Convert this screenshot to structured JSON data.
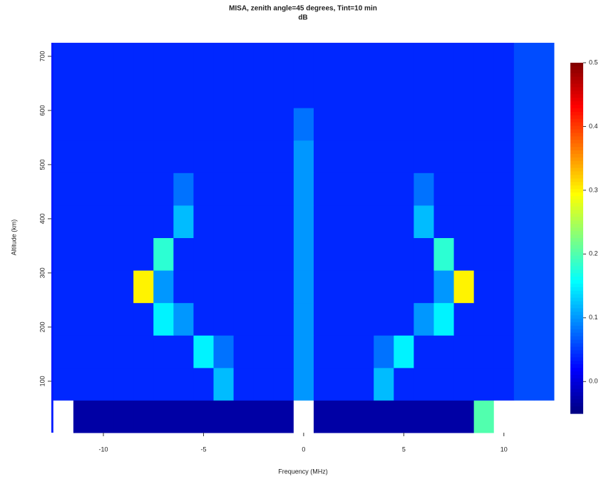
{
  "chart_data": {
    "type": "heatmap",
    "title": "MISA, zenith angle=45 degrees, Tint=10 min",
    "subtitle": "dB",
    "xlabel": "Frequency (MHz)",
    "ylabel": "Altitude (km)",
    "xlim": [
      -12.6,
      12.5
    ],
    "ylim": [
      5,
      725
    ],
    "xticks": [
      -10,
      -5,
      0,
      5,
      10
    ],
    "yticks": [
      100,
      200,
      300,
      400,
      500,
      600,
      700
    ],
    "zlim": [
      -0.05,
      0.5
    ],
    "colorbar_ticks": [
      {
        "value": 0,
        "label": "0.0"
      },
      0.1,
      0.2,
      0.3,
      0.4,
      0.5
    ],
    "colormap": "jet",
    "over_color": "#ffffff",
    "x": [
      -12,
      -11,
      -10,
      -9,
      -8,
      -7,
      -6,
      -5,
      -4,
      -3,
      -2,
      -1,
      0,
      1,
      2,
      3,
      4,
      5,
      6,
      7,
      8,
      9,
      10,
      11,
      12
    ],
    "y": [
      35,
      95,
      155,
      215,
      275,
      335,
      395,
      455,
      515,
      575,
      635,
      695
    ],
    "z": [
      [
        0.6,
        -0.03,
        -0.03,
        -0.03,
        -0.03,
        -0.03,
        -0.03,
        -0.03,
        -0.03,
        -0.03,
        -0.03,
        -0.03,
        0.6,
        -0.03,
        -0.03,
        -0.03,
        -0.03,
        -0.03,
        -0.03,
        -0.03,
        -0.03,
        0.2,
        0.6,
        0.6,
        0.6
      ],
      [
        0.04,
        0.04,
        0.04,
        0.04,
        0.04,
        0.04,
        0.04,
        0.04,
        0.12,
        0.04,
        0.04,
        0.04,
        0.1,
        0.04,
        0.04,
        0.04,
        0.12,
        0.04,
        0.04,
        0.04,
        0.04,
        0.04,
        0.04,
        0.06,
        0.06
      ],
      [
        0.04,
        0.04,
        0.04,
        0.04,
        0.04,
        0.04,
        0.04,
        0.15,
        0.08,
        0.04,
        0.04,
        0.04,
        0.1,
        0.04,
        0.04,
        0.04,
        0.08,
        0.15,
        0.04,
        0.04,
        0.04,
        0.04,
        0.04,
        0.06,
        0.06
      ],
      [
        0.04,
        0.04,
        0.04,
        0.04,
        0.04,
        0.15,
        0.1,
        0.04,
        0.04,
        0.04,
        0.04,
        0.04,
        0.1,
        0.04,
        0.04,
        0.04,
        0.04,
        0.04,
        0.1,
        0.15,
        0.04,
        0.04,
        0.04,
        0.06,
        0.06
      ],
      [
        0.04,
        0.04,
        0.04,
        0.04,
        0.3,
        0.1,
        0.04,
        0.04,
        0.04,
        0.04,
        0.04,
        0.04,
        0.1,
        0.04,
        0.04,
        0.04,
        0.04,
        0.04,
        0.04,
        0.1,
        0.3,
        0.04,
        0.04,
        0.06,
        0.06
      ],
      [
        0.04,
        0.04,
        0.04,
        0.04,
        0.04,
        0.18,
        0.04,
        0.04,
        0.04,
        0.04,
        0.04,
        0.04,
        0.1,
        0.04,
        0.04,
        0.04,
        0.04,
        0.04,
        0.04,
        0.18,
        0.04,
        0.04,
        0.04,
        0.06,
        0.06
      ],
      [
        0.04,
        0.04,
        0.04,
        0.04,
        0.04,
        0.04,
        0.12,
        0.04,
        0.04,
        0.04,
        0.04,
        0.04,
        0.1,
        0.04,
        0.04,
        0.04,
        0.04,
        0.04,
        0.12,
        0.04,
        0.04,
        0.04,
        0.04,
        0.06,
        0.06
      ],
      [
        0.04,
        0.04,
        0.04,
        0.04,
        0.04,
        0.04,
        0.08,
        0.04,
        0.04,
        0.04,
        0.04,
        0.04,
        0.1,
        0.04,
        0.04,
        0.04,
        0.04,
        0.04,
        0.08,
        0.04,
        0.04,
        0.04,
        0.04,
        0.06,
        0.06
      ],
      [
        0.04,
        0.04,
        0.04,
        0.04,
        0.04,
        0.04,
        0.04,
        0.04,
        0.04,
        0.04,
        0.04,
        0.04,
        0.1,
        0.04,
        0.04,
        0.04,
        0.04,
        0.04,
        0.04,
        0.04,
        0.04,
        0.04,
        0.04,
        0.06,
        0.06
      ],
      [
        0.04,
        0.04,
        0.04,
        0.04,
        0.04,
        0.04,
        0.04,
        0.04,
        0.04,
        0.04,
        0.04,
        0.04,
        0.08,
        0.04,
        0.04,
        0.04,
        0.04,
        0.04,
        0.04,
        0.04,
        0.04,
        0.04,
        0.04,
        0.06,
        0.06
      ],
      [
        0.04,
        0.04,
        0.04,
        0.04,
        0.04,
        0.04,
        0.04,
        0.04,
        0.04,
        0.04,
        0.04,
        0.04,
        0.04,
        0.04,
        0.04,
        0.04,
        0.04,
        0.04,
        0.04,
        0.04,
        0.04,
        0.04,
        0.04,
        0.06,
        0.06
      ],
      [
        0.04,
        0.04,
        0.04,
        0.04,
        0.04,
        0.04,
        0.04,
        0.04,
        0.04,
        0.04,
        0.04,
        0.04,
        0.04,
        0.04,
        0.04,
        0.04,
        0.04,
        0.04,
        0.04,
        0.04,
        0.04,
        0.04,
        0.04,
        0.06,
        0.06
      ]
    ]
  }
}
